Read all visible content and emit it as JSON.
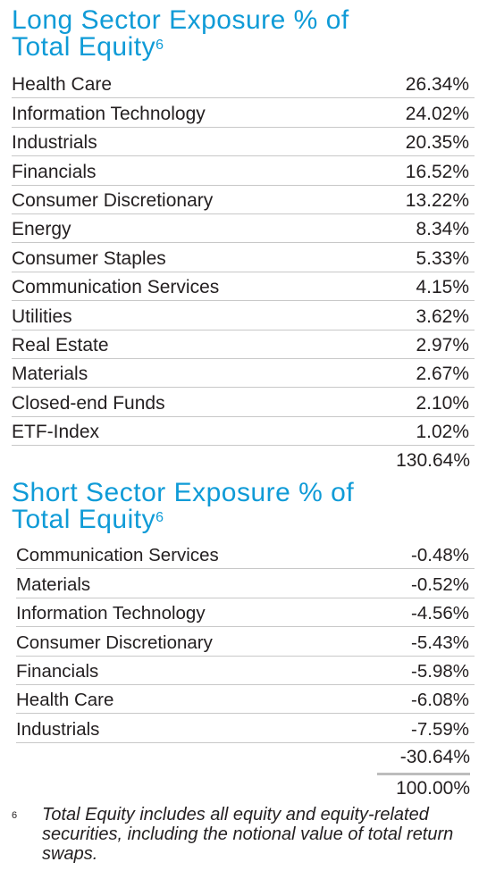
{
  "long": {
    "title": "Long Sector Exposure % of Total Equity",
    "title_line1": "Long Sector Exposure % of",
    "title_line2": "Total Equity",
    "footnote_ref": "6",
    "rows": [
      {
        "sector": "Health Care",
        "value": "26.34%"
      },
      {
        "sector": "Information Technology",
        "value": "24.02%"
      },
      {
        "sector": "Industrials",
        "value": "20.35%"
      },
      {
        "sector": "Financials",
        "value": "16.52%"
      },
      {
        "sector": "Consumer Discretionary",
        "value": "13.22%"
      },
      {
        "sector": "Energy",
        "value": "8.34%"
      },
      {
        "sector": "Consumer Staples",
        "value": "5.33%"
      },
      {
        "sector": "Communication Services",
        "value": "4.15%"
      },
      {
        "sector": "Utilities",
        "value": "3.62%"
      },
      {
        "sector": "Real Estate",
        "value": "2.97%"
      },
      {
        "sector": "Materials",
        "value": "2.67%"
      },
      {
        "sector": "Closed-end Funds",
        "value": "2.10%"
      },
      {
        "sector": "ETF-Index",
        "value": "1.02%"
      }
    ],
    "total": "130.64%"
  },
  "short": {
    "title_line1": "Short Sector Exposure % of",
    "title_line2": "Total Equity",
    "footnote_ref": "6",
    "rows": [
      {
        "sector": "Communication Services",
        "value": "-0.48%"
      },
      {
        "sector": "Materials",
        "value": "-0.52%"
      },
      {
        "sector": "Information Technology",
        "value": "-4.56%"
      },
      {
        "sector": "Consumer Discretionary",
        "value": "-5.43%"
      },
      {
        "sector": "Financials",
        "value": "-5.98%"
      },
      {
        "sector": "Health Care",
        "value": "-6.08%"
      },
      {
        "sector": "Industrials",
        "value": "-7.59%"
      }
    ],
    "total": "-30.64%"
  },
  "net_total": "100.00%",
  "footnote": {
    "mark": "6",
    "text": "Total Equity includes all equity and equity-related securities, including the notional value of total return swaps."
  },
  "colors": {
    "title": "#0f9bd7",
    "text": "#231f20",
    "rule": "#c8c8c8"
  }
}
